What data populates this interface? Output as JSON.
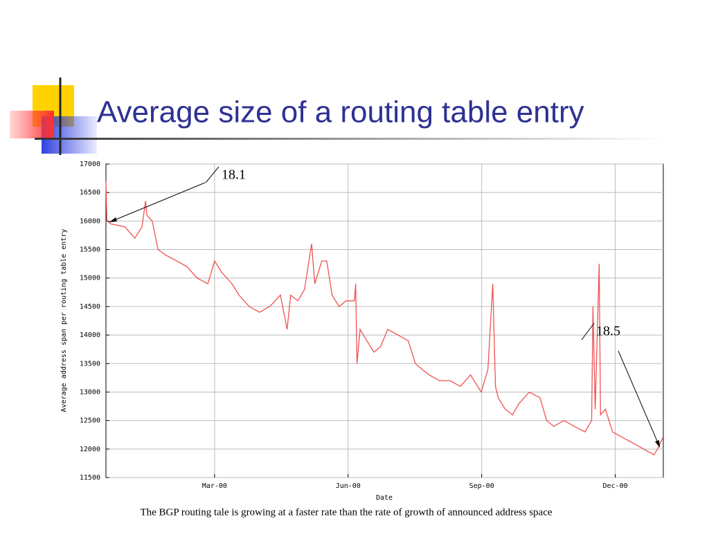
{
  "chart_data": {
    "type": "line",
    "title": "Average size of a routing table entry",
    "xlabel": "Date",
    "ylabel": "Average address span per routing table entry",
    "caption": "The BGP routing tale is growing at a faster rate than the rate of growth of announced address space",
    "annotations": [
      "18.1",
      "18.5"
    ],
    "xlim": [
      -0.44,
      12.08
    ],
    "ylim": [
      11500,
      17000
    ],
    "xticks": [
      {
        "value": 2,
        "label": "Mar-00"
      },
      {
        "value": 5,
        "label": "Jun-00"
      },
      {
        "value": 8,
        "label": "Sep-00"
      },
      {
        "value": 11,
        "label": "Dec-00"
      }
    ],
    "yticks": [
      11500,
      12000,
      12500,
      13000,
      13500,
      14000,
      14500,
      15000,
      15500,
      16000,
      16500,
      17000
    ],
    "grid": true,
    "series": [
      {
        "color": "#f05050",
        "x": [
          -0.44,
          -0.42,
          -0.33,
          -0.02,
          0.21,
          0.37,
          0.45,
          0.48,
          0.6,
          0.73,
          0.91,
          1.15,
          1.38,
          1.61,
          1.85,
          2.0,
          2.16,
          2.39,
          2.55,
          2.78,
          3.01,
          3.24,
          3.48,
          3.63,
          3.71,
          3.87,
          4.02,
          4.18,
          4.25,
          4.41,
          4.52,
          4.64,
          4.8,
          4.95,
          5.14,
          5.17,
          5.2,
          5.27,
          5.42,
          5.58,
          5.73,
          5.89,
          6.12,
          6.35,
          6.51,
          6.66,
          6.82,
          7.05,
          7.29,
          7.52,
          7.75,
          7.99,
          8.14,
          8.25,
          8.31,
          8.37,
          8.53,
          8.69,
          8.84,
          9.07,
          9.31,
          9.46,
          9.62,
          9.85,
          10.08,
          10.32,
          10.47,
          10.5,
          10.55,
          10.64,
          10.67,
          10.78,
          10.94,
          11.17,
          11.41,
          11.64,
          11.87,
          11.95,
          12.07
        ],
        "values": [
          16700,
          16000,
          15950,
          15900,
          15700,
          15900,
          16350,
          16100,
          16000,
          15500,
          15400,
          15300,
          15200,
          15000,
          14900,
          15300,
          15100,
          14900,
          14700,
          14500,
          14400,
          14500,
          14700,
          14100,
          14700,
          14600,
          14800,
          15600,
          14900,
          15300,
          15300,
          14700,
          14500,
          14600,
          14600,
          14900,
          13500,
          14100,
          13900,
          13700,
          13800,
          14100,
          14000,
          13900,
          13500,
          13400,
          13300,
          13200,
          13200,
          13100,
          13300,
          13000,
          13400,
          14900,
          13100,
          12900,
          12700,
          12600,
          12800,
          13000,
          12900,
          12500,
          12400,
          12500,
          12400,
          12300,
          12500,
          14500,
          12700,
          15250,
          12600,
          12700,
          12300,
          12200,
          12100,
          12000,
          11900,
          12000,
          12200
        ]
      }
    ]
  }
}
